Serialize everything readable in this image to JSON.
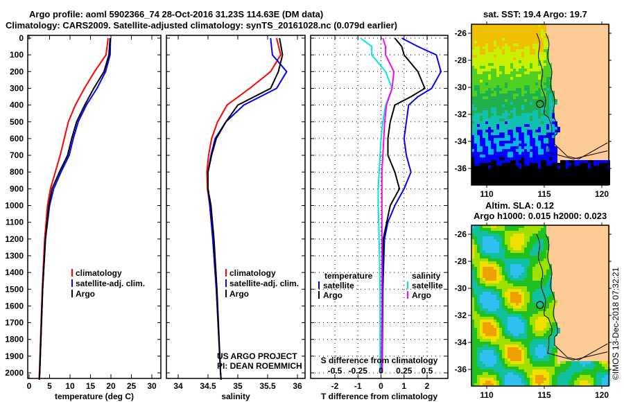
{
  "header": {
    "title1": "Argo profile: aoml 5902366_74 28-Oct-2016 31.23S 114.63E (DM data)",
    "title2": "Climatology: CARS2009. Satellite-adjusted climatology: synTS_20161028.nc (0.079d earlier)"
  },
  "colors": {
    "climatology": "#ff0000",
    "satellite": "#0000ff",
    "argo": "#000000",
    "sal_satellite": "#00e5e5",
    "sal_argo": "#ff00ff",
    "land": "#fccb96"
  },
  "chart_data": [
    {
      "type": "line",
      "name": "temperature",
      "xlabel": "temperature (deg C)",
      "xlim": [
        -1,
        31.5
      ],
      "ylim": [
        2040,
        0
      ],
      "xticks": [
        0,
        5,
        10,
        15,
        20,
        25,
        30
      ],
      "yticks": [
        0,
        100,
        200,
        300,
        400,
        500,
        600,
        700,
        800,
        900,
        1000,
        1100,
        1200,
        1300,
        1400,
        1500,
        1600,
        1700,
        1800,
        1900,
        2000
      ],
      "legend": [
        "climatology",
        "satellite-adj. clim.",
        "Argo"
      ],
      "series": [
        {
          "name": "climatology",
          "color": "#ff0000",
          "depth": [
            0,
            100,
            200,
            300,
            400,
            500,
            600,
            700,
            800,
            900,
            1000,
            1200,
            1500,
            2000,
            2040
          ],
          "values": [
            19.3,
            18.8,
            16,
            13.5,
            11.3,
            9.6,
            8.6,
            7.6,
            6.4,
            5.2,
            4.5,
            3.8,
            3.2,
            2.5,
            2.4
          ]
        },
        {
          "name": "satellite-adj. clim.",
          "color": "#0000ff",
          "depth": [
            0,
            100,
            200,
            300,
            400,
            500,
            600,
            700,
            800,
            900,
            1000,
            1200,
            1500,
            2000,
            2040
          ],
          "values": [
            19.9,
            19.8,
            18.7,
            16.6,
            14,
            12,
            10.8,
            9.8,
            7.8,
            6,
            5,
            4,
            3.3,
            2.6,
            2.5
          ]
        },
        {
          "name": "Argo",
          "color": "#000000",
          "depth": [
            0,
            100,
            200,
            300,
            400,
            500,
            600,
            700,
            800,
            900,
            1000,
            1200,
            1500,
            2000,
            2040
          ],
          "values": [
            19.8,
            19.5,
            18.3,
            15.8,
            13.6,
            11.6,
            10.4,
            9.4,
            7.4,
            5.6,
            4.8,
            4,
            3.3,
            2.6,
            2.5
          ]
        }
      ]
    },
    {
      "type": "line",
      "name": "salinity",
      "xlabel": "salinity",
      "xlim": [
        33.82,
        36.15
      ],
      "ylim": [
        2040,
        0
      ],
      "xticks": [
        34,
        34.5,
        35,
        35.5,
        36
      ],
      "legend": [
        "climatology",
        "satellite-adj. clim.",
        "Argo"
      ],
      "annotation": [
        "US ARGO PROJECT",
        "PI: DEAN ROEMMICH"
      ],
      "series": [
        {
          "name": "climatology",
          "color": "#ff0000",
          "depth": [
            0,
            100,
            200,
            300,
            400,
            500,
            600,
            700,
            800,
            900,
            1000,
            1200,
            1500,
            2000,
            2040
          ],
          "values": [
            35.65,
            35.72,
            35.55,
            35.2,
            34.82,
            34.66,
            34.56,
            34.51,
            34.48,
            34.49,
            34.53,
            34.58,
            34.64,
            34.71,
            34.72
          ]
        },
        {
          "name": "satellite-adj. clim.",
          "color": "#0000ff",
          "depth": [
            0,
            100,
            200,
            300,
            400,
            500,
            600,
            700,
            800,
            900,
            1000,
            1200,
            1500,
            2000,
            2040
          ],
          "values": [
            35.55,
            35.58,
            35.82,
            35.65,
            35.1,
            34.8,
            34.62,
            34.55,
            34.5,
            34.5,
            34.53,
            34.58,
            34.64,
            34.71,
            34.72
          ]
        },
        {
          "name": "Argo",
          "color": "#000000",
          "depth": [
            0,
            100,
            200,
            300,
            400,
            500,
            600,
            700,
            800,
            900,
            1000,
            1200,
            1500,
            2000,
            2040
          ],
          "values": [
            35.7,
            35.75,
            35.68,
            35.55,
            35.0,
            34.8,
            34.64,
            34.56,
            34.5,
            34.5,
            34.55,
            34.6,
            34.65,
            34.71,
            34.72
          ]
        }
      ]
    },
    {
      "type": "line",
      "name": "difference",
      "xlabel": "T difference from climatology",
      "xlabel2": "S difference from climatology",
      "xlim": [
        -3,
        3
      ],
      "xticks": [
        -2,
        -1,
        0,
        1,
        2
      ],
      "sticks": [
        -0.5,
        -0.25,
        0,
        0.25,
        0.5
      ],
      "ylim": [
        2040,
        0
      ],
      "legend_t_title": "temperature",
      "legend_s_title": "salinity",
      "legend_t": [
        "satellite",
        "Argo"
      ],
      "legend_s": [
        "satellite",
        "Argo"
      ],
      "series": [
        {
          "name": "T satellite",
          "color": "#0000ff",
          "depth": [
            0,
            50,
            100,
            200,
            300,
            350,
            400,
            500,
            600,
            700,
            800,
            900,
            1000,
            1100,
            1200,
            1500,
            2000
          ],
          "values": [
            0.9,
            1.6,
            2.4,
            2.6,
            2.2,
            1.6,
            1.2,
            1.1,
            1.0,
            1.1,
            1.3,
            1.0,
            0.6,
            0.3,
            0.15,
            0.08,
            0.05
          ]
        },
        {
          "name": "T Argo",
          "color": "#000000",
          "depth": [
            0,
            50,
            100,
            200,
            300,
            350,
            400,
            500,
            600,
            700,
            800,
            900,
            1000,
            1100,
            1200,
            1500,
            2000
          ],
          "values": [
            0.6,
            0.9,
            1.0,
            1.6,
            1.9,
            1.3,
            0.6,
            0.4,
            0.3,
            0.3,
            0.6,
            0.8,
            0.4,
            0.25,
            0.1,
            0.05,
            0.02
          ]
        },
        {
          "name": "S satellite",
          "color": "#00e5e5",
          "depth": [
            0,
            50,
            100,
            200,
            300,
            400,
            500,
            600,
            700,
            800,
            900,
            1000,
            1200,
            1500,
            2000
          ],
          "values": [
            -0.22,
            -0.1,
            -0.1,
            0.05,
            0.12,
            0.05,
            0.02,
            0.0,
            -0.01,
            -0.02,
            -0.03,
            -0.03,
            -0.02,
            -0.01,
            -0.01
          ]
        },
        {
          "name": "S Argo",
          "color": "#ff00ff",
          "depth": [
            0,
            50,
            100,
            200,
            300,
            400,
            500,
            600,
            700,
            800,
            900,
            1000,
            1200,
            1500,
            2000
          ],
          "values": [
            0.02,
            0.05,
            0.05,
            0.14,
            0.12,
            0.06,
            0.04,
            0.03,
            0.02,
            0.01,
            0.01,
            0.01,
            0.01,
            0.01,
            0.01
          ]
        }
      ]
    }
  ],
  "maps": [
    {
      "title": "sat. SST: 19.4 Argo: 19.7",
      "xticks": [
        110,
        115,
        120
      ],
      "yticks": [
        -26,
        -28,
        -30,
        -32,
        -34,
        -36
      ],
      "float_lon": 114.63,
      "float_lat": -31.23
    },
    {
      "title1": "Altim. SLA: 0.12",
      "title2": "Argo h1000: 0.015 h2000: 0.023",
      "xticks": [
        110,
        115,
        120
      ],
      "yticks": [
        -26,
        -28,
        -30,
        -32,
        -34,
        -36
      ],
      "float_lon": 114.63,
      "float_lat": -31.23
    }
  ],
  "footer": {
    "stamp": "©IMOS 13-Dec-2018 07:32:21"
  }
}
